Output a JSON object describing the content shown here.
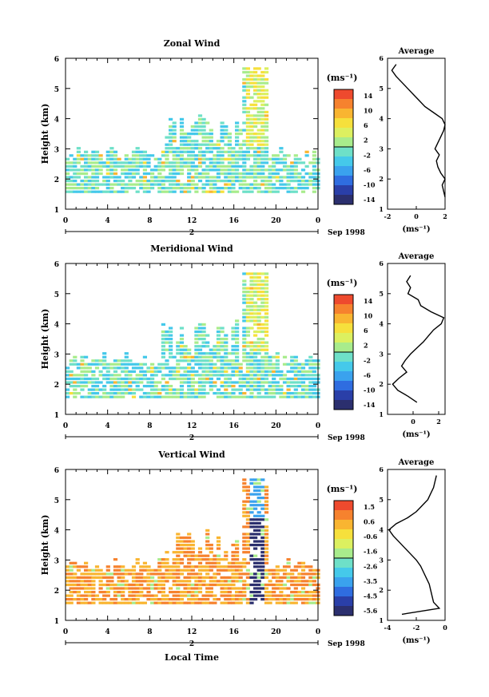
{
  "panels": [
    {
      "title": "Zonal Wind",
      "ylabel": "Height (km)",
      "yticks": [
        "1",
        "2",
        "3",
        "4",
        "5",
        "6"
      ],
      "xticks": [
        "0",
        "4",
        "8",
        "12",
        "16",
        "20",
        "0"
      ],
      "day_label": "2",
      "date_label": "Sep 1998",
      "cbar_title": "(ms⁻¹)",
      "cbar_labels": [
        "14",
        "10",
        "6",
        "2",
        "-2",
        "-6",
        "-10",
        "-14"
      ],
      "avg_title": "Average",
      "avg_xticks": [
        "-2",
        "0",
        "2"
      ],
      "avg_xlabel": "(ms⁻¹)"
    },
    {
      "title": "Meridional Wind",
      "ylabel": "Height (km)",
      "yticks": [
        "1",
        "2",
        "3",
        "4",
        "5",
        "6"
      ],
      "xticks": [
        "0",
        "4",
        "8",
        "12",
        "16",
        "20",
        "0"
      ],
      "day_label": "2",
      "date_label": "Sep 1998",
      "cbar_title": "(ms⁻¹)",
      "cbar_labels": [
        "14",
        "10",
        "6",
        "2",
        "-2",
        "-6",
        "-10",
        "-14"
      ],
      "avg_title": "Average",
      "avg_xticks": [
        "0",
        "2"
      ],
      "avg_xlabel": "(ms⁻¹)"
    },
    {
      "title": "Vertical Wind",
      "ylabel": "Height (km)",
      "yticks": [
        "1",
        "2",
        "3",
        "4",
        "5",
        "6"
      ],
      "xticks": [
        "0",
        "4",
        "8",
        "12",
        "16",
        "20",
        "0"
      ],
      "day_label": "2",
      "date_label": "Sep 1998",
      "xlabel": "Local Time",
      "cbar_title": "(ms⁻¹)",
      "cbar_labels": [
        "1.5",
        "0.6",
        "-0.6",
        "-1.6",
        "-2.6",
        "-3.5",
        "-4.5",
        "-5.6"
      ],
      "avg_title": "Average",
      "avg_xticks": [
        "-4",
        "-2",
        "0"
      ],
      "avg_xlabel": "(ms⁻¹)"
    }
  ],
  "colorbar_colors": [
    "#2b2f6e",
    "#2a3fa8",
    "#2f6de0",
    "#3aa2ee",
    "#45c9ea",
    "#6ee0c8",
    "#a8ec8c",
    "#dcf060",
    "#f6e03c",
    "#f9b531",
    "#f6822e",
    "#ee4a2e"
  ],
  "chart_data": [
    {
      "type": "heatmap",
      "title": "Zonal Wind",
      "xlabel": "",
      "ylabel": "Height (km)",
      "xlim": [
        0,
        24
      ],
      "ylim": [
        1,
        6
      ],
      "colorbar_units": "(ms⁻¹)",
      "colorbar_range": [
        -14,
        14
      ],
      "average_profile": {
        "title": "Average",
        "xlim": [
          -2,
          2
        ],
        "height": [
          1.4,
          1.6,
          1.8,
          2.0,
          2.2,
          2.4,
          2.6,
          2.8,
          3.0,
          3.2,
          3.4,
          3.6,
          3.8,
          4.0,
          4.2,
          4.4,
          4.6,
          4.8,
          5.0,
          5.2,
          5.4,
          5.6,
          5.8
        ],
        "value": [
          2.0,
          1.9,
          1.8,
          2.0,
          1.7,
          1.5,
          1.4,
          1.6,
          1.3,
          1.5,
          1.7,
          1.9,
          2.0,
          1.8,
          1.2,
          0.6,
          0.2,
          -0.2,
          -0.6,
          -1.0,
          -1.4,
          -1.7,
          -1.4
        ]
      }
    },
    {
      "type": "heatmap",
      "title": "Meridional Wind",
      "xlabel": "",
      "ylabel": "Height (km)",
      "xlim": [
        0,
        24
      ],
      "ylim": [
        1,
        6
      ],
      "colorbar_units": "(ms⁻¹)",
      "colorbar_range": [
        -14,
        14
      ],
      "average_profile": {
        "title": "Average",
        "xlim": [
          -2,
          2.5
        ],
        "height": [
          1.4,
          1.6,
          1.8,
          2.0,
          2.2,
          2.4,
          2.6,
          2.8,
          3.0,
          3.2,
          3.4,
          3.6,
          3.8,
          4.0,
          4.2,
          4.4,
          4.6,
          4.8,
          5.0,
          5.2,
          5.4,
          5.6
        ],
        "value": [
          0.3,
          -0.4,
          -1.2,
          -1.6,
          -1.1,
          -0.5,
          -0.9,
          -0.6,
          -0.2,
          0.3,
          0.8,
          1.2,
          1.6,
          2.2,
          2.4,
          1.4,
          0.6,
          0.4,
          -0.4,
          -0.2,
          -0.5,
          -0.2
        ]
      }
    },
    {
      "type": "heatmap",
      "title": "Vertical Wind",
      "xlabel": "Local Time",
      "ylabel": "Height (km)",
      "xlim": [
        0,
        24
      ],
      "ylim": [
        1,
        6
      ],
      "colorbar_units": "(ms⁻¹)",
      "colorbar_range": [
        -5.6,
        1.5
      ],
      "average_profile": {
        "title": "Average",
        "xlim": [
          -4,
          0
        ],
        "height": [
          1.2,
          1.4,
          1.6,
          1.8,
          2.0,
          2.2,
          2.4,
          2.6,
          2.8,
          3.0,
          3.2,
          3.4,
          3.6,
          3.8,
          4.0,
          4.2,
          4.4,
          4.6,
          4.8,
          5.0,
          5.2,
          5.4,
          5.6,
          5.8
        ],
        "value": [
          -3.0,
          -0.4,
          -0.8,
          -0.9,
          -1.0,
          -1.1,
          -1.3,
          -1.5,
          -1.7,
          -2.0,
          -2.4,
          -2.8,
          -3.2,
          -3.6,
          -3.9,
          -3.4,
          -2.6,
          -2.0,
          -1.6,
          -1.2,
          -1.0,
          -0.8,
          -0.7,
          -0.6
        ]
      }
    }
  ]
}
